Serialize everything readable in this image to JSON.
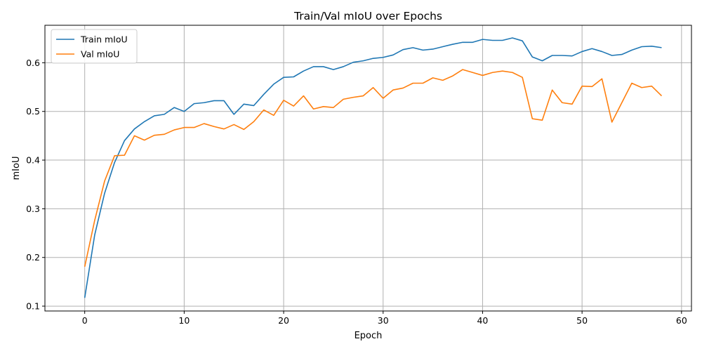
{
  "chart_data": {
    "type": "line",
    "title": "Train/Val mIoU over Epochs",
    "xlabel": "Epoch",
    "ylabel": "mIoU",
    "xlim": [
      -4,
      61
    ],
    "ylim": [
      0.09,
      0.677
    ],
    "xticks": [
      0,
      10,
      20,
      30,
      40,
      50,
      60
    ],
    "yticks": [
      0.1,
      0.2,
      0.3,
      0.4,
      0.5,
      0.6
    ],
    "xtick_labels": [
      "0",
      "10",
      "20",
      "30",
      "40",
      "50",
      "60"
    ],
    "ytick_labels": [
      "0.1",
      "0.2",
      "0.3",
      "0.4",
      "0.5",
      "0.6"
    ],
    "grid": true,
    "legend_position": "top-left",
    "x": [
      0,
      1,
      2,
      3,
      4,
      5,
      6,
      7,
      8,
      9,
      10,
      11,
      12,
      13,
      14,
      15,
      16,
      17,
      18,
      19,
      20,
      21,
      22,
      23,
      24,
      25,
      26,
      27,
      28,
      29,
      30,
      31,
      32,
      33,
      34,
      35,
      36,
      37,
      38,
      39,
      40,
      41,
      42,
      43,
      44,
      45,
      46,
      47,
      48,
      49,
      50,
      51,
      52,
      53,
      54,
      55,
      56,
      57,
      58
    ],
    "series": [
      {
        "name": "Train mIoU",
        "color": "#1f77b4",
        "values": [
          0.117,
          0.246,
          0.332,
          0.395,
          0.44,
          0.464,
          0.479,
          0.491,
          0.494,
          0.508,
          0.5,
          0.516,
          0.518,
          0.522,
          0.522,
          0.494,
          0.515,
          0.512,
          0.535,
          0.556,
          0.57,
          0.571,
          0.583,
          0.592,
          0.592,
          0.586,
          0.592,
          0.601,
          0.604,
          0.609,
          0.611,
          0.616,
          0.627,
          0.631,
          0.626,
          0.628,
          0.633,
          0.638,
          0.642,
          0.642,
          0.648,
          0.646,
          0.646,
          0.651,
          0.645,
          0.612,
          0.604,
          0.615,
          0.615,
          0.614,
          0.623,
          0.629,
          0.623,
          0.615,
          0.617,
          0.626,
          0.633,
          0.634,
          0.631
        ]
      },
      {
        "name": "Val mIoU",
        "color": "#ff7f0e",
        "values": [
          0.181,
          0.276,
          0.357,
          0.409,
          0.41,
          0.45,
          0.441,
          0.451,
          0.453,
          0.462,
          0.467,
          0.467,
          0.475,
          0.469,
          0.464,
          0.473,
          0.463,
          0.479,
          0.503,
          0.492,
          0.523,
          0.511,
          0.532,
          0.505,
          0.51,
          0.508,
          0.525,
          0.529,
          0.532,
          0.549,
          0.527,
          0.544,
          0.548,
          0.558,
          0.558,
          0.569,
          0.564,
          0.573,
          0.586,
          0.58,
          0.574,
          0.58,
          0.583,
          0.58,
          0.57,
          0.485,
          0.482,
          0.544,
          0.518,
          0.515,
          0.552,
          0.551,
          0.567,
          0.478,
          0.518,
          0.558,
          0.549,
          0.552,
          0.532
        ]
      }
    ]
  }
}
